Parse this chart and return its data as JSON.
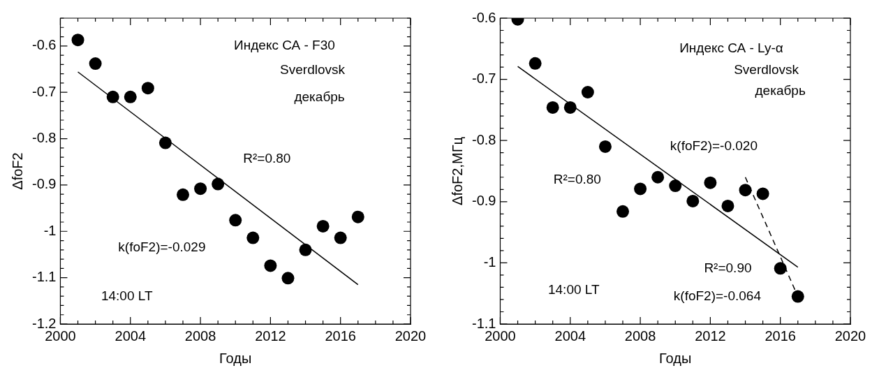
{
  "chart_data": [
    {
      "type": "scatter",
      "xlabel": "Годы",
      "ylabel": "ΔfoF2",
      "annotations": [
        "Индекс СА - F30",
        "Sverdlovsk",
        "декабрь",
        "R²=0.80",
        "k(foF2)=-0.029",
        "14:00 LT"
      ],
      "xlim": [
        2000,
        2020
      ],
      "xticks": [
        2000,
        {
          "value": 2001,
          "label": null
        },
        {
          "value": 2002,
          "label": null
        },
        {
          "value": 2003,
          "label": null
        },
        2004,
        {
          "value": 2005,
          "label": null
        },
        {
          "value": 2006,
          "label": null
        },
        {
          "value": 2007,
          "label": null
        },
        2008,
        {
          "value": 2009,
          "label": null
        },
        {
          "value": 2010,
          "label": null
        },
        {
          "value": 2011,
          "label": null
        },
        2012,
        {
          "value": 2013,
          "label": null
        },
        {
          "value": 2014,
          "label": null
        },
        {
          "value": 2015,
          "label": null
        },
        2016,
        {
          "value": 2017,
          "label": null
        },
        {
          "value": 2018,
          "label": null
        },
        {
          "value": 2019,
          "label": null
        },
        2020
      ],
      "ylim": [
        -1.2,
        -0.54
      ],
      "yticks": [
        -1.2,
        {
          "value": -1.18,
          "label": null
        },
        {
          "value": -1.16,
          "label": null
        },
        {
          "value": -1.14,
          "label": null
        },
        {
          "value": -1.12,
          "label": null
        },
        -1.1,
        {
          "value": -1.08,
          "label": null
        },
        {
          "value": -1.06,
          "label": null
        },
        {
          "value": -1.04,
          "label": null
        },
        {
          "value": -1.02,
          "label": null
        },
        -1,
        {
          "value": -0.98,
          "label": null
        },
        {
          "value": -0.96,
          "label": null
        },
        {
          "value": -0.94,
          "label": null
        },
        {
          "value": -0.92,
          "label": null
        },
        -0.9,
        {
          "value": -0.88,
          "label": null
        },
        {
          "value": -0.86,
          "label": null
        },
        {
          "value": -0.84,
          "label": null
        },
        {
          "value": -0.82,
          "label": null
        },
        -0.8,
        {
          "value": -0.78,
          "label": null
        },
        {
          "value": -0.76,
          "label": null
        },
        {
          "value": -0.74,
          "label": null
        },
        {
          "value": -0.72,
          "label": null
        },
        -0.7,
        {
          "value": -0.68,
          "label": null
        },
        {
          "value": -0.66,
          "label": null
        },
        {
          "value": -0.64,
          "label": null
        },
        {
          "value": -0.62,
          "label": null
        },
        -0.6,
        {
          "value": -0.58,
          "label": null
        },
        {
          "value": -0.56,
          "label": null
        },
        {
          "value": -0.54,
          "label": null
        }
      ],
      "series": [
        {
          "marker": "circle",
          "color": "#000000",
          "x": [
            2001,
            2002,
            2003,
            2004,
            2005,
            2006,
            2007,
            2008,
            2009,
            2010,
            2011,
            2012,
            2013,
            2014,
            2015,
            2016,
            2017
          ],
          "values": [
            -0.587,
            -0.638,
            -0.71,
            -0.71,
            -0.691,
            -0.809,
            -0.921,
            -0.908,
            -0.898,
            -0.976,
            -1.014,
            -1.074,
            -1.101,
            -1.04,
            -0.989,
            -1.014,
            -0.969
          ]
        },
        {
          "type": "line",
          "color": "#000000",
          "line_style": "solid",
          "x": [
            2001,
            2017
          ],
          "values": [
            -0.656,
            -1.115
          ]
        }
      ]
    },
    {
      "type": "scatter",
      "xlabel": "Годы",
      "ylabel": "ΔfoF2,МГц",
      "annotations": [
        "Индекс СА - Ly-α",
        "Sverdlovsk",
        "декабрь",
        "k(foF2)=-0.020",
        "R²=0.80",
        "R²=0.90",
        "k(foF2)=-0.064",
        "14:00 LT"
      ],
      "xlim": [
        2000,
        2020
      ],
      "xticks": [
        2000,
        {
          "value": 2001,
          "label": null
        },
        {
          "value": 2002,
          "label": null
        },
        {
          "value": 2003,
          "label": null
        },
        2004,
        {
          "value": 2005,
          "label": null
        },
        {
          "value": 2006,
          "label": null
        },
        {
          "value": 2007,
          "label": null
        },
        2008,
        {
          "value": 2009,
          "label": null
        },
        {
          "value": 2010,
          "label": null
        },
        {
          "value": 2011,
          "label": null
        },
        2012,
        {
          "value": 2013,
          "label": null
        },
        {
          "value": 2014,
          "label": null
        },
        {
          "value": 2015,
          "label": null
        },
        2016,
        {
          "value": 2017,
          "label": null
        },
        {
          "value": 2018,
          "label": null
        },
        {
          "value": 2019,
          "label": null
        },
        2020
      ],
      "ylim": [
        -1.1,
        -0.6
      ],
      "yticks": [
        -1.1,
        {
          "value": -1.08,
          "label": null
        },
        {
          "value": -1.06,
          "label": null
        },
        {
          "value": -1.04,
          "label": null
        },
        {
          "value": -1.02,
          "label": null
        },
        -1,
        {
          "value": -0.98,
          "label": null
        },
        {
          "value": -0.96,
          "label": null
        },
        {
          "value": -0.94,
          "label": null
        },
        {
          "value": -0.92,
          "label": null
        },
        -0.9,
        {
          "value": -0.88,
          "label": null
        },
        {
          "value": -0.86,
          "label": null
        },
        {
          "value": -0.84,
          "label": null
        },
        {
          "value": -0.82,
          "label": null
        },
        -0.8,
        {
          "value": -0.78,
          "label": null
        },
        {
          "value": -0.76,
          "label": null
        },
        {
          "value": -0.74,
          "label": null
        },
        {
          "value": -0.72,
          "label": null
        },
        -0.7,
        {
          "value": -0.68,
          "label": null
        },
        {
          "value": -0.66,
          "label": null
        },
        {
          "value": -0.64,
          "label": null
        },
        {
          "value": -0.62,
          "label": null
        },
        -0.6
      ],
      "series": [
        {
          "marker": "circle",
          "color": "#000000",
          "x": [
            2001,
            2002,
            2003,
            2004,
            2005,
            2006,
            2007,
            2008,
            2009,
            2010,
            2011,
            2012,
            2013,
            2014,
            2015,
            2016,
            2017
          ],
          "values": [
            -0.602,
            -0.674,
            -0.746,
            -0.746,
            -0.721,
            -0.81,
            -0.916,
            -0.879,
            -0.86,
            -0.874,
            -0.899,
            -0.869,
            -0.907,
            -0.881,
            -0.887,
            -1.009,
            -1.055
          ]
        },
        {
          "type": "line",
          "color": "#000000",
          "line_style": "solid",
          "x": [
            2001,
            2017
          ],
          "values": [
            -0.679,
            -1.007
          ]
        },
        {
          "type": "line",
          "color": "#000000",
          "line_style": "dashed",
          "x": [
            2014,
            2017
          ],
          "values": [
            -0.86,
            -1.055
          ]
        }
      ]
    }
  ]
}
